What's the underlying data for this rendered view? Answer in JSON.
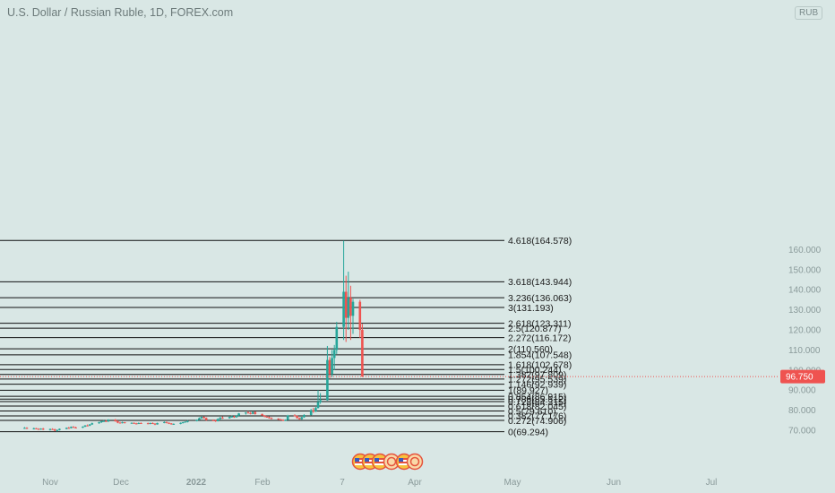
{
  "header": {
    "title": "U.S. Dollar / Russian Ruble, 1D, FOREX.com",
    "currency": "RUB"
  },
  "colors": {
    "background": "#d9e7e5",
    "up": "#26a69a",
    "down": "#ef5350",
    "fib_line": "#111111",
    "axis_text": "#8a9a9a",
    "price_tag": "#ef5350"
  },
  "last_price": {
    "value": 96.75,
    "label": "96.750"
  },
  "chart_data": {
    "type": "candlestick",
    "symbol": "USDRUB",
    "timeframe": "1D",
    "y_axis": {
      "range": [
        66.0,
        172.0
      ],
      "ticks": [
        70,
        80,
        90,
        100,
        110,
        120,
        130,
        140,
        150,
        160
      ],
      "tick_labels": [
        "70.000",
        "80.000",
        "90.000",
        "100.000",
        "110.000",
        "120.000",
        "130.000",
        "140.000",
        "150.000",
        "160.000"
      ]
    },
    "x_axis": {
      "labels": [
        "Nov",
        "Dec",
        "2022",
        "Feb",
        "7",
        "Apr",
        "May",
        "Jun",
        "Jul"
      ]
    },
    "fib_levels": [
      {
        "ratio": "4.618",
        "price": 164.578,
        "label": "4.618(164.578)"
      },
      {
        "ratio": "3.618",
        "price": 143.944,
        "label": "3.618(143.944)"
      },
      {
        "ratio": "3.236",
        "price": 136.063,
        "label": "3.236(136.063)"
      },
      {
        "ratio": "3",
        "price": 131.193,
        "label": "3(131.193)"
      },
      {
        "ratio": "2.618",
        "price": 123.311,
        "label": "2.618(123.311)"
      },
      {
        "ratio": "2.5",
        "price": 120.877,
        "label": "2.5(120.877)"
      },
      {
        "ratio": "2.272",
        "price": 116.172,
        "label": "2.272(116.172)"
      },
      {
        "ratio": "2",
        "price": 110.56,
        "label": "2(110.560)"
      },
      {
        "ratio": "1.854",
        "price": 107.548,
        "label": "1.854(107.548)"
      },
      {
        "ratio": "1.618",
        "price": 102.678,
        "label": "1.618(102.678)"
      },
      {
        "ratio": "1.5",
        "price": 100.244,
        "label": "1.5(100.244)"
      },
      {
        "ratio": "1.382",
        "price": 97.809,
        "label": "1.382(97.809)"
      },
      {
        "ratio": "1.272",
        "price": 95.539,
        "label": "1.272(95.539)"
      },
      {
        "ratio": "1.146",
        "price": 92.939,
        "label": "1.146(92.939)"
      },
      {
        "ratio": "1",
        "price": 89.927,
        "label": "1(89.927)"
      },
      {
        "ratio": "0.854",
        "price": 86.915,
        "label": "0.854(86.915)"
      },
      {
        "ratio": "0.786",
        "price": 85.512,
        "label": "0.786(85.512)"
      },
      {
        "ratio": "0.728",
        "price": 84.315,
        "label": "0.728(84.315)"
      },
      {
        "ratio": "0.618",
        "price": 82.045,
        "label": "0.618(82.045)"
      },
      {
        "ratio": "0.5",
        "price": 79.61,
        "label": "0.5(79.610)"
      },
      {
        "ratio": "0.382",
        "price": 77.176,
        "label": "0.382(77.176)"
      },
      {
        "ratio": "0.272",
        "price": 74.906,
        "label": "0.272(74.906)"
      },
      {
        "ratio": "0",
        "price": 69.294,
        "label": "0(69.294)"
      }
    ],
    "candles": [
      {
        "date": "2021-10-21",
        "o": 71.1,
        "h": 71.6,
        "l": 70.8,
        "c": 71.2
      },
      {
        "date": "2021-10-22",
        "o": 71.2,
        "h": 71.5,
        "l": 70.6,
        "c": 70.9
      },
      {
        "date": "2021-10-25",
        "o": 70.9,
        "h": 71.3,
        "l": 70.4,
        "c": 71.0
      },
      {
        "date": "2021-10-26",
        "o": 71.0,
        "h": 71.2,
        "l": 70.5,
        "c": 70.7
      },
      {
        "date": "2021-10-27",
        "o": 70.7,
        "h": 71.0,
        "l": 70.2,
        "c": 70.4
      },
      {
        "date": "2021-10-28",
        "o": 70.4,
        "h": 71.0,
        "l": 70.3,
        "c": 70.8
      },
      {
        "date": "2021-10-29",
        "o": 70.8,
        "h": 71.2,
        "l": 70.1,
        "c": 70.3
      },
      {
        "date": "2021-11-01",
        "o": 70.3,
        "h": 70.9,
        "l": 69.9,
        "c": 70.6
      },
      {
        "date": "2021-11-02",
        "o": 70.6,
        "h": 71.0,
        "l": 70.2,
        "c": 70.4
      },
      {
        "date": "2021-11-03",
        "o": 70.4,
        "h": 70.8,
        "l": 69.5,
        "c": 69.8
      },
      {
        "date": "2021-11-04",
        "o": 69.8,
        "h": 70.4,
        "l": 69.3,
        "c": 70.1
      },
      {
        "date": "2021-11-05",
        "o": 70.1,
        "h": 70.9,
        "l": 69.9,
        "c": 70.7
      },
      {
        "date": "2021-11-08",
        "o": 70.7,
        "h": 71.4,
        "l": 70.5,
        "c": 71.2
      },
      {
        "date": "2021-11-09",
        "o": 71.2,
        "h": 71.7,
        "l": 70.9,
        "c": 71.1
      },
      {
        "date": "2021-11-10",
        "o": 71.1,
        "h": 71.9,
        "l": 70.9,
        "c": 71.7
      },
      {
        "date": "2021-11-11",
        "o": 71.7,
        "h": 72.1,
        "l": 71.2,
        "c": 71.4
      },
      {
        "date": "2021-11-12",
        "o": 71.4,
        "h": 71.8,
        "l": 71.0,
        "c": 71.3
      },
      {
        "date": "2021-11-15",
        "o": 71.3,
        "h": 72.0,
        "l": 71.1,
        "c": 71.8
      },
      {
        "date": "2021-11-16",
        "o": 71.8,
        "h": 72.6,
        "l": 71.6,
        "c": 72.4
      },
      {
        "date": "2021-11-17",
        "o": 72.4,
        "h": 72.9,
        "l": 72.0,
        "c": 72.3
      },
      {
        "date": "2021-11-18",
        "o": 72.3,
        "h": 73.1,
        "l": 72.1,
        "c": 72.9
      },
      {
        "date": "2021-11-19",
        "o": 72.9,
        "h": 73.8,
        "l": 72.7,
        "c": 73.5
      },
      {
        "date": "2021-11-22",
        "o": 73.5,
        "h": 74.3,
        "l": 73.2,
        "c": 74.0
      },
      {
        "date": "2021-11-23",
        "o": 74.0,
        "h": 74.6,
        "l": 73.6,
        "c": 74.5
      },
      {
        "date": "2021-11-24",
        "o": 74.5,
        "h": 75.0,
        "l": 74.2,
        "c": 74.6
      },
      {
        "date": "2021-11-25",
        "o": 74.6,
        "h": 75.1,
        "l": 74.3,
        "c": 74.4
      },
      {
        "date": "2021-11-26",
        "o": 74.4,
        "h": 75.5,
        "l": 74.1,
        "c": 75.3
      },
      {
        "date": "2021-11-29",
        "o": 75.3,
        "h": 75.6,
        "l": 74.2,
        "c": 74.5
      },
      {
        "date": "2021-11-30",
        "o": 74.5,
        "h": 74.9,
        "l": 73.5,
        "c": 73.8
      },
      {
        "date": "2021-12-01",
        "o": 73.8,
        "h": 74.2,
        "l": 73.4,
        "c": 73.7
      },
      {
        "date": "2021-12-02",
        "o": 73.7,
        "h": 74.3,
        "l": 73.4,
        "c": 74.0
      },
      {
        "date": "2021-12-03",
        "o": 74.0,
        "h": 74.1,
        "l": 73.4,
        "c": 73.6
      },
      {
        "date": "2021-12-06",
        "o": 73.6,
        "h": 73.9,
        "l": 73.3,
        "c": 73.7
      },
      {
        "date": "2021-12-07",
        "o": 73.7,
        "h": 73.9,
        "l": 73.2,
        "c": 73.4
      },
      {
        "date": "2021-12-08",
        "o": 73.4,
        "h": 73.7,
        "l": 73.0,
        "c": 73.3
      },
      {
        "date": "2021-12-09",
        "o": 73.3,
        "h": 73.9,
        "l": 73.1,
        "c": 73.6
      },
      {
        "date": "2021-12-10",
        "o": 73.6,
        "h": 73.9,
        "l": 73.2,
        "c": 73.5
      },
      {
        "date": "2021-12-13",
        "o": 73.5,
        "h": 73.8,
        "l": 73.0,
        "c": 73.3
      },
      {
        "date": "2021-12-14",
        "o": 73.3,
        "h": 73.8,
        "l": 73.0,
        "c": 73.6
      },
      {
        "date": "2021-12-15",
        "o": 73.6,
        "h": 73.9,
        "l": 73.1,
        "c": 73.3
      },
      {
        "date": "2021-12-16",
        "o": 73.3,
        "h": 73.5,
        "l": 72.6,
        "c": 72.9
      },
      {
        "date": "2021-12-17",
        "o": 72.9,
        "h": 73.8,
        "l": 72.8,
        "c": 73.6
      },
      {
        "date": "2021-12-20",
        "o": 73.6,
        "h": 74.4,
        "l": 73.5,
        "c": 74.1
      },
      {
        "date": "2021-12-21",
        "o": 74.1,
        "h": 74.3,
        "l": 73.4,
        "c": 73.7
      },
      {
        "date": "2021-12-22",
        "o": 73.7,
        "h": 73.9,
        "l": 73.1,
        "c": 73.4
      },
      {
        "date": "2021-12-23",
        "o": 73.4,
        "h": 73.6,
        "l": 72.8,
        "c": 73.0
      },
      {
        "date": "2021-12-24",
        "o": 73.0,
        "h": 73.4,
        "l": 72.7,
        "c": 73.2
      },
      {
        "date": "2021-12-27",
        "o": 73.2,
        "h": 73.9,
        "l": 73.0,
        "c": 73.7
      },
      {
        "date": "2021-12-28",
        "o": 73.7,
        "h": 74.2,
        "l": 73.4,
        "c": 74.0
      },
      {
        "date": "2021-12-29",
        "o": 74.0,
        "h": 74.5,
        "l": 73.8,
        "c": 74.3
      },
      {
        "date": "2021-12-30",
        "o": 74.3,
        "h": 75.0,
        "l": 73.9,
        "c": 74.6
      },
      {
        "date": "2022-01-03",
        "o": 74.6,
        "h": 75.4,
        "l": 74.4,
        "c": 75.2
      },
      {
        "date": "2022-01-04",
        "o": 75.2,
        "h": 76.4,
        "l": 75.0,
        "c": 76.0
      },
      {
        "date": "2022-01-05",
        "o": 76.0,
        "h": 76.8,
        "l": 75.6,
        "c": 76.7
      },
      {
        "date": "2022-01-06",
        "o": 76.7,
        "h": 76.9,
        "l": 75.8,
        "c": 76.1
      },
      {
        "date": "2022-01-07",
        "o": 76.1,
        "h": 76.4,
        "l": 74.8,
        "c": 75.0
      },
      {
        "date": "2022-01-10",
        "o": 75.0,
        "h": 75.4,
        "l": 74.6,
        "c": 74.9
      },
      {
        "date": "2022-01-11",
        "o": 74.9,
        "h": 75.3,
        "l": 74.2,
        "c": 74.5
      },
      {
        "date": "2022-01-12",
        "o": 74.5,
        "h": 75.9,
        "l": 74.4,
        "c": 75.6
      },
      {
        "date": "2022-01-13",
        "o": 75.6,
        "h": 76.6,
        "l": 75.3,
        "c": 76.3
      },
      {
        "date": "2022-01-14",
        "o": 76.3,
        "h": 76.9,
        "l": 75.7,
        "c": 76.0
      },
      {
        "date": "2022-01-17",
        "o": 76.0,
        "h": 76.8,
        "l": 75.8,
        "c": 76.6
      },
      {
        "date": "2022-01-18",
        "o": 76.6,
        "h": 77.3,
        "l": 76.3,
        "c": 76.9
      },
      {
        "date": "2022-01-19",
        "o": 76.9,
        "h": 77.2,
        "l": 76.2,
        "c": 76.5
      },
      {
        "date": "2022-01-20",
        "o": 76.5,
        "h": 77.6,
        "l": 76.3,
        "c": 77.3
      },
      {
        "date": "2022-01-21",
        "o": 77.3,
        "h": 78.6,
        "l": 77.1,
        "c": 78.4
      },
      {
        "date": "2022-01-24",
        "o": 78.4,
        "h": 79.0,
        "l": 77.8,
        "c": 78.9
      },
      {
        "date": "2022-01-25",
        "o": 78.9,
        "h": 79.5,
        "l": 78.3,
        "c": 78.6
      },
      {
        "date": "2022-01-26",
        "o": 78.6,
        "h": 79.1,
        "l": 77.9,
        "c": 78.2
      },
      {
        "date": "2022-01-27",
        "o": 78.2,
        "h": 79.5,
        "l": 78.0,
        "c": 79.1
      },
      {
        "date": "2022-01-28",
        "o": 79.1,
        "h": 79.4,
        "l": 77.8,
        "c": 78.1
      },
      {
        "date": "2022-01-31",
        "o": 78.1,
        "h": 78.3,
        "l": 77.2,
        "c": 77.4
      },
      {
        "date": "2022-02-01",
        "o": 77.4,
        "h": 77.6,
        "l": 76.5,
        "c": 76.8
      },
      {
        "date": "2022-02-02",
        "o": 76.8,
        "h": 77.2,
        "l": 76.3,
        "c": 76.5
      },
      {
        "date": "2022-02-03",
        "o": 76.5,
        "h": 76.9,
        "l": 75.8,
        "c": 76.1
      },
      {
        "date": "2022-02-04",
        "o": 76.1,
        "h": 76.4,
        "l": 75.5,
        "c": 75.8
      },
      {
        "date": "2022-02-07",
        "o": 75.8,
        "h": 76.0,
        "l": 75.1,
        "c": 75.4
      },
      {
        "date": "2022-02-08",
        "o": 75.4,
        "h": 75.7,
        "l": 74.9,
        "c": 75.2
      },
      {
        "date": "2022-02-09",
        "o": 75.2,
        "h": 75.5,
        "l": 74.6,
        "c": 74.8
      },
      {
        "date": "2022-02-10",
        "o": 74.8,
        "h": 75.4,
        "l": 74.6,
        "c": 75.1
      },
      {
        "date": "2022-02-11",
        "o": 75.1,
        "h": 77.7,
        "l": 75.0,
        "c": 77.4
      },
      {
        "date": "2022-02-14",
        "o": 77.4,
        "h": 78.0,
        "l": 76.9,
        "c": 77.2
      },
      {
        "date": "2022-02-15",
        "o": 77.2,
        "h": 77.4,
        "l": 75.8,
        "c": 76.1
      },
      {
        "date": "2022-02-16",
        "o": 76.1,
        "h": 76.4,
        "l": 75.3,
        "c": 75.5
      },
      {
        "date": "2022-02-17",
        "o": 75.5,
        "h": 76.7,
        "l": 75.3,
        "c": 76.5
      },
      {
        "date": "2022-02-18",
        "o": 76.5,
        "h": 78.0,
        "l": 76.2,
        "c": 77.6
      },
      {
        "date": "2022-02-21",
        "o": 77.6,
        "h": 80.6,
        "l": 77.4,
        "c": 80.0
      },
      {
        "date": "2022-02-22",
        "o": 80.0,
        "h": 81.2,
        "l": 78.7,
        "c": 79.3
      },
      {
        "date": "2022-02-23",
        "o": 79.3,
        "h": 81.6,
        "l": 79.1,
        "c": 81.1
      },
      {
        "date": "2022-02-24",
        "o": 81.1,
        "h": 90.0,
        "l": 80.9,
        "c": 84.0
      },
      {
        "date": "2022-02-25",
        "o": 84.0,
        "h": 88.5,
        "l": 83.2,
        "c": 85.0
      },
      {
        "date": "2022-02-28",
        "o": 85.0,
        "h": 112.0,
        "l": 84.8,
        "c": 105.0
      },
      {
        "date": "2022-03-01",
        "o": 105.0,
        "h": 106.5,
        "l": 96.0,
        "c": 98.0
      },
      {
        "date": "2022-03-02",
        "o": 98.0,
        "h": 110.0,
        "l": 96.5,
        "c": 106.0
      },
      {
        "date": "2022-03-03",
        "o": 106.0,
        "h": 112.5,
        "l": 100.0,
        "c": 110.0
      },
      {
        "date": "2022-03-04",
        "o": 110.0,
        "h": 124.0,
        "l": 108.0,
        "c": 121.5
      },
      {
        "date": "2022-03-07",
        "o": 121.5,
        "h": 164.5,
        "l": 115.0,
        "c": 139.0
      },
      {
        "date": "2022-03-08",
        "o": 139.0,
        "h": 147.0,
        "l": 114.0,
        "c": 126.0
      },
      {
        "date": "2022-03-09",
        "o": 126.0,
        "h": 149.0,
        "l": 120.0,
        "c": 136.0
      },
      {
        "date": "2022-03-10",
        "o": 136.0,
        "h": 142.0,
        "l": 115.0,
        "c": 127.0
      },
      {
        "date": "2022-03-11",
        "o": 127.0,
        "h": 135.5,
        "l": 118.0,
        "c": 134.0
      },
      {
        "date": "2022-03-14",
        "o": 134.0,
        "h": 135.0,
        "l": 116.0,
        "c": 120.0
      },
      {
        "date": "2022-03-15",
        "o": 120.0,
        "h": 123.0,
        "l": 96.5,
        "c": 96.75
      }
    ]
  }
}
